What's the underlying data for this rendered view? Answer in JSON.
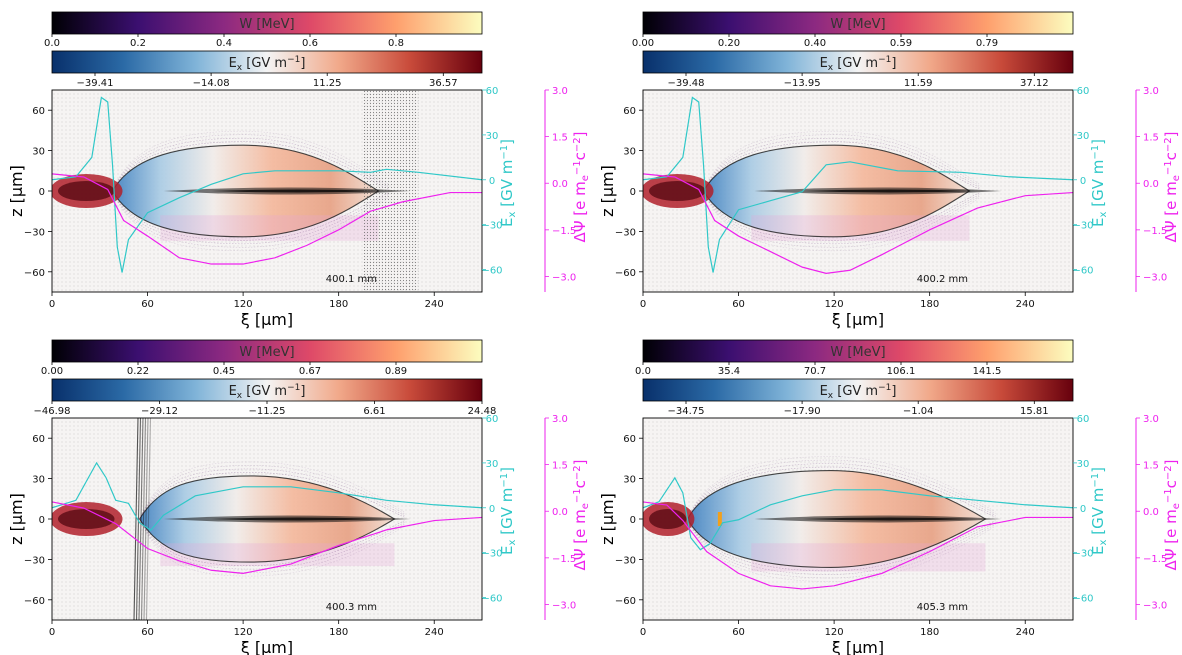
{
  "colors": {
    "ex_cmap": [
      "#08306b",
      "#2b6aa6",
      "#7fb3d8",
      "#f4f4f4",
      "#f1a98a",
      "#c84a3a",
      "#67000d"
    ],
    "w_cmap": [
      "#000004",
      "#3b0f70",
      "#8c2981",
      "#de4968",
      "#fe9f6d",
      "#fcfdbf"
    ],
    "ex_line": "#30c8c8",
    "psi_line": "#ee22ee",
    "boundary": "#1a1a1a",
    "beam": "#111111",
    "witness": "#f2a01c"
  },
  "shared": {
    "w_label": "W [MeV]",
    "ex_label": "E",
    "ex_sub": "x",
    "ex_unit": " [GV m",
    "ex_unit_exp": "−1",
    "ex_unit_close": "]",
    "x_label": "ξ [μm]",
    "z_label": "z [μm]",
    "x_ticks": [
      "0",
      "60",
      "120",
      "180",
      "240"
    ],
    "z_ticks": [
      "60",
      "30",
      "0",
      "−30",
      "−60"
    ],
    "ex_axis_ticks": [
      "60",
      "30",
      "0",
      "−30",
      "−60"
    ],
    "psi_axis_ticks": [
      "3.0",
      "1.5",
      "0.0",
      "−1.5",
      "−3.0"
    ],
    "psi_label_main": "ΔΨ [e m",
    "psi_label_sub": "e",
    "psi_label_exp1": "−1",
    "psi_label_c": "c",
    "psi_label_exp2": "−2",
    "psi_label_close": "]"
  },
  "chart_data": [
    {
      "type": "heatmap",
      "position_label": "400.1 mm",
      "w_ticks": [
        "0.0",
        "0.2",
        "0.4",
        "0.6",
        "0.8"
      ],
      "ex_ticks": [
        "−39.41",
        "−14.08",
        "11.25",
        "36.57"
      ],
      "xlim": [
        0,
        270
      ],
      "zlim": [
        -75,
        75
      ],
      "ex_lim": [
        -75,
        60
      ],
      "psi_lim": [
        -3.5,
        3.0
      ],
      "bubble": {
        "xi_start": 38,
        "xi_end": 205,
        "max_z": 34,
        "peak_xi": 120
      },
      "band": [
        195,
        230
      ],
      "ex_curve": [
        [
          0,
          0
        ],
        [
          15,
          2
        ],
        [
          25,
          15
        ],
        [
          31,
          55
        ],
        [
          35,
          52
        ],
        [
          38,
          10
        ],
        [
          41,
          -45
        ],
        [
          44,
          -62
        ],
        [
          48,
          -40
        ],
        [
          60,
          -22
        ],
        [
          80,
          -12
        ],
        [
          100,
          -3
        ],
        [
          120,
          4
        ],
        [
          140,
          6
        ],
        [
          160,
          6
        ],
        [
          180,
          6
        ],
        [
          200,
          5
        ],
        [
          210,
          7
        ],
        [
          230,
          5
        ],
        [
          270,
          0
        ]
      ],
      "psi_curve": [
        [
          0,
          0.3
        ],
        [
          20,
          0.2
        ],
        [
          35,
          -0.2
        ],
        [
          45,
          -1.2
        ],
        [
          60,
          -1.7
        ],
        [
          80,
          -2.4
        ],
        [
          100,
          -2.6
        ],
        [
          120,
          -2.6
        ],
        [
          140,
          -2.4
        ],
        [
          160,
          -2.0
        ],
        [
          180,
          -1.5
        ],
        [
          200,
          -0.9
        ],
        [
          220,
          -0.6
        ],
        [
          250,
          -0.3
        ],
        [
          270,
          -0.3
        ]
      ]
    },
    {
      "type": "heatmap",
      "position_label": "400.2 mm",
      "w_ticks": [
        "0.00",
        "0.20",
        "0.40",
        "0.59",
        "0.79"
      ],
      "ex_ticks": [
        "−39.48",
        "−13.95",
        "11.59",
        "37.12"
      ],
      "xlim": [
        0,
        270
      ],
      "zlim": [
        -75,
        75
      ],
      "ex_lim": [
        -75,
        60
      ],
      "psi_lim": [
        -3.5,
        3.0
      ],
      "bubble": {
        "xi_start": 38,
        "xi_end": 205,
        "max_z": 34,
        "peak_xi": 120
      },
      "band": null,
      "ex_curve": [
        [
          0,
          0
        ],
        [
          15,
          2
        ],
        [
          25,
          15
        ],
        [
          31,
          55
        ],
        [
          35,
          52
        ],
        [
          38,
          10
        ],
        [
          41,
          -45
        ],
        [
          44,
          -62
        ],
        [
          48,
          -40
        ],
        [
          60,
          -20
        ],
        [
          80,
          -14
        ],
        [
          100,
          -8
        ],
        [
          115,
          10
        ],
        [
          130,
          12
        ],
        [
          160,
          6
        ],
        [
          200,
          5
        ],
        [
          230,
          2
        ],
        [
          270,
          0
        ]
      ],
      "psi_curve": [
        [
          0,
          0.3
        ],
        [
          20,
          0.2
        ],
        [
          35,
          -0.2
        ],
        [
          45,
          -1.2
        ],
        [
          60,
          -1.7
        ],
        [
          80,
          -2.2
        ],
        [
          100,
          -2.7
        ],
        [
          115,
          -2.9
        ],
        [
          130,
          -2.8
        ],
        [
          150,
          -2.3
        ],
        [
          180,
          -1.5
        ],
        [
          210,
          -0.8
        ],
        [
          240,
          -0.4
        ],
        [
          270,
          -0.3
        ]
      ]
    },
    {
      "type": "heatmap",
      "position_label": "400.3 mm",
      "w_ticks": [
        "0.00",
        "0.22",
        "0.45",
        "0.67",
        "0.89"
      ],
      "ex_ticks": [
        "−46.98",
        "−29.12",
        "−11.25",
        "6.61",
        "24.48"
      ],
      "xlim": [
        0,
        270
      ],
      "zlim": [
        -75,
        75
      ],
      "ex_lim": [
        -75,
        60
      ],
      "psi_lim": [
        -3.5,
        3.0
      ],
      "bubble": {
        "xi_start": 55,
        "xi_end": 215,
        "max_z": 32,
        "peak_xi": 125
      },
      "band": null,
      "ex_curve": [
        [
          0,
          0
        ],
        [
          15,
          5
        ],
        [
          28,
          30
        ],
        [
          34,
          20
        ],
        [
          40,
          5
        ],
        [
          48,
          3
        ],
        [
          55,
          -10
        ],
        [
          62,
          -15
        ],
        [
          70,
          -5
        ],
        [
          90,
          8
        ],
        [
          120,
          14
        ],
        [
          150,
          14
        ],
        [
          180,
          10
        ],
        [
          210,
          5
        ],
        [
          240,
          2
        ],
        [
          270,
          0
        ]
      ],
      "psi_curve": [
        [
          0,
          0.3
        ],
        [
          20,
          0.1
        ],
        [
          40,
          -0.4
        ],
        [
          60,
          -1.2
        ],
        [
          80,
          -1.6
        ],
        [
          100,
          -1.9
        ],
        [
          120,
          -2.0
        ],
        [
          150,
          -1.7
        ],
        [
          180,
          -1.1
        ],
        [
          210,
          -0.6
        ],
        [
          240,
          -0.3
        ],
        [
          270,
          -0.2
        ]
      ]
    },
    {
      "type": "heatmap",
      "position_label": "405.3 mm",
      "w_ticks": [
        "0.0",
        "35.4",
        "70.7",
        "106.1",
        "141.5"
      ],
      "ex_ticks": [
        "−34.75",
        "−17.90",
        "−1.04",
        "15.81"
      ],
      "xlim": [
        0,
        270
      ],
      "zlim": [
        -75,
        75
      ],
      "ex_lim": [
        -75,
        60
      ],
      "psi_lim": [
        -3.5,
        3.0
      ],
      "bubble": {
        "xi_start": 28,
        "xi_end": 215,
        "max_z": 36,
        "peak_xi": 118
      },
      "band": null,
      "ex_curve": [
        [
          0,
          0
        ],
        [
          10,
          4
        ],
        [
          20,
          20
        ],
        [
          25,
          10
        ],
        [
          30,
          -20
        ],
        [
          36,
          -28
        ],
        [
          42,
          -24
        ],
        [
          50,
          -10
        ],
        [
          60,
          -8
        ],
        [
          80,
          2
        ],
        [
          100,
          8
        ],
        [
          120,
          12
        ],
        [
          150,
          12
        ],
        [
          180,
          8
        ],
        [
          210,
          5
        ],
        [
          240,
          2
        ],
        [
          270,
          0
        ]
      ],
      "psi_curve": [
        [
          0,
          0.3
        ],
        [
          15,
          0.2
        ],
        [
          25,
          -0.3
        ],
        [
          40,
          -1.3
        ],
        [
          60,
          -2.0
        ],
        [
          80,
          -2.4
        ],
        [
          100,
          -2.5
        ],
        [
          120,
          -2.4
        ],
        [
          150,
          -2.0
        ],
        [
          180,
          -1.3
        ],
        [
          210,
          -0.5
        ],
        [
          240,
          -0.2
        ],
        [
          270,
          -0.2
        ]
      ]
    }
  ]
}
